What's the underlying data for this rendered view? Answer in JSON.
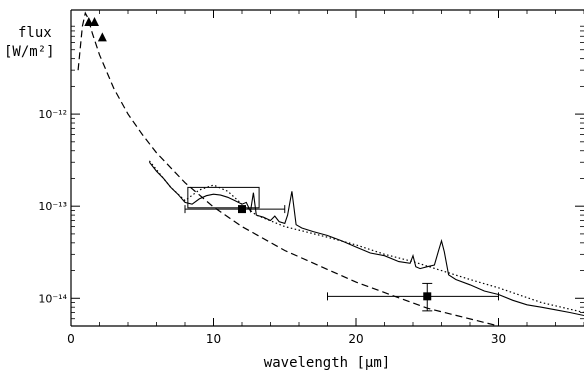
{
  "chart_data": {
    "type": "line",
    "ylabel_line1": "flux",
    "ylabel_line2": "[W/m²]",
    "xlabel": "wavelength [μm]",
    "xlim": [
      0,
      36
    ],
    "ylim": [
      5e-15,
      1.35e-11
    ],
    "yscale": "log",
    "x_ticks": [
      "0",
      "10",
      "20",
      "30"
    ],
    "y_ticks": [
      {
        "value": 1e-12,
        "label": "10⁻¹²"
      },
      {
        "value": 1e-13,
        "label": "10⁻¹³"
      },
      {
        "value": 1e-14,
        "label": "10⁻¹⁴"
      }
    ],
    "series": [
      {
        "style": "dashed",
        "x": [
          0.5,
          0.8,
          1.0,
          1.2,
          1.5,
          2,
          3,
          4,
          5,
          6,
          8,
          10,
          12,
          15,
          20,
          25,
          30,
          36
        ],
        "y": [
          3e-12,
          9e-12,
          1.25e-11,
          1.1e-11,
          7.5e-12,
          4.4e-12,
          1.9e-12,
          1e-12,
          6e-13,
          3.8e-13,
          1.8e-13,
          9.8e-14,
          6e-14,
          3.3e-14,
          1.5e-14,
          7.8e-15,
          5e-15,
          3.5e-15
        ]
      },
      {
        "style": "dotted",
        "x": [
          5.5,
          7,
          8,
          9,
          10,
          11,
          12,
          13,
          15,
          18,
          20,
          22,
          24,
          26,
          28,
          30,
          33,
          36
        ],
        "y": [
          3.1e-13,
          1.6e-13,
          1.15e-13,
          1.5e-13,
          1.7e-13,
          1.45e-13,
          1.05e-13,
          8e-14,
          6e-14,
          4.6e-14,
          3.8e-14,
          3e-14,
          2.5e-14,
          2e-14,
          1.6e-14,
          1.3e-14,
          9e-15,
          7e-15
        ]
      },
      {
        "style": "solid",
        "x": [
          5.5,
          6,
          6.5,
          7,
          7.5,
          8,
          8.5,
          9,
          9.5,
          10,
          10.5,
          11,
          11.5,
          12,
          12.3,
          12.6,
          12.8,
          13,
          13.5,
          14,
          14.3,
          14.6,
          15,
          15.2,
          15.5,
          15.8,
          16.2,
          17,
          18,
          19,
          20,
          21,
          22,
          23,
          23.8,
          24,
          24.2,
          24.5,
          25,
          25.5,
          25.8,
          26,
          26.2,
          26.5,
          27,
          28,
          29,
          30,
          31,
          32,
          33,
          34,
          35,
          36
        ],
        "y": [
          3e-13,
          2.4e-13,
          2e-13,
          1.6e-13,
          1.35e-13,
          1.1e-13,
          1.05e-13,
          1.2e-13,
          1.3e-13,
          1.35e-13,
          1.32e-13,
          1.25e-13,
          1.15e-13,
          1.05e-13,
          1.1e-13,
          8.8e-14,
          1.4e-13,
          8e-14,
          7.6e-14,
          7e-14,
          7.8e-14,
          6.8e-14,
          6.5e-14,
          8e-14,
          1.45e-13,
          6.3e-14,
          5.8e-14,
          5.3e-14,
          4.8e-14,
          4.2e-14,
          3.6e-14,
          3.1e-14,
          2.9e-14,
          2.5e-14,
          2.4e-14,
          2.9e-14,
          2.2e-14,
          2.1e-14,
          2.2e-14,
          2.3e-14,
          3.3e-14,
          4.2e-14,
          3.2e-14,
          1.8e-14,
          1.6e-14,
          1.4e-14,
          1.2e-14,
          1.1e-14,
          9.5e-15,
          8.5e-15,
          8e-15,
          7.5e-15,
          7e-15,
          6.5e-15
        ]
      }
    ],
    "triangles": [
      {
        "x": 1.25,
        "y": 1e-11
      },
      {
        "x": 1.65,
        "y": 1e-11
      },
      {
        "x": 2.2,
        "y": 6.8e-12
      }
    ],
    "squares": [
      {
        "x": 12,
        "y": 9.3e-14,
        "xerr": [
          8,
          15
        ]
      },
      {
        "x": 25,
        "y": 1.05e-14,
        "xerr": [
          18,
          30
        ],
        "yerr": [
          7.3e-15,
          1.45e-14
        ]
      }
    ],
    "box": {
      "x0": 8.2,
      "x1": 13.2,
      "y0": 9.6e-14,
      "y1": 1.6e-13
    }
  }
}
